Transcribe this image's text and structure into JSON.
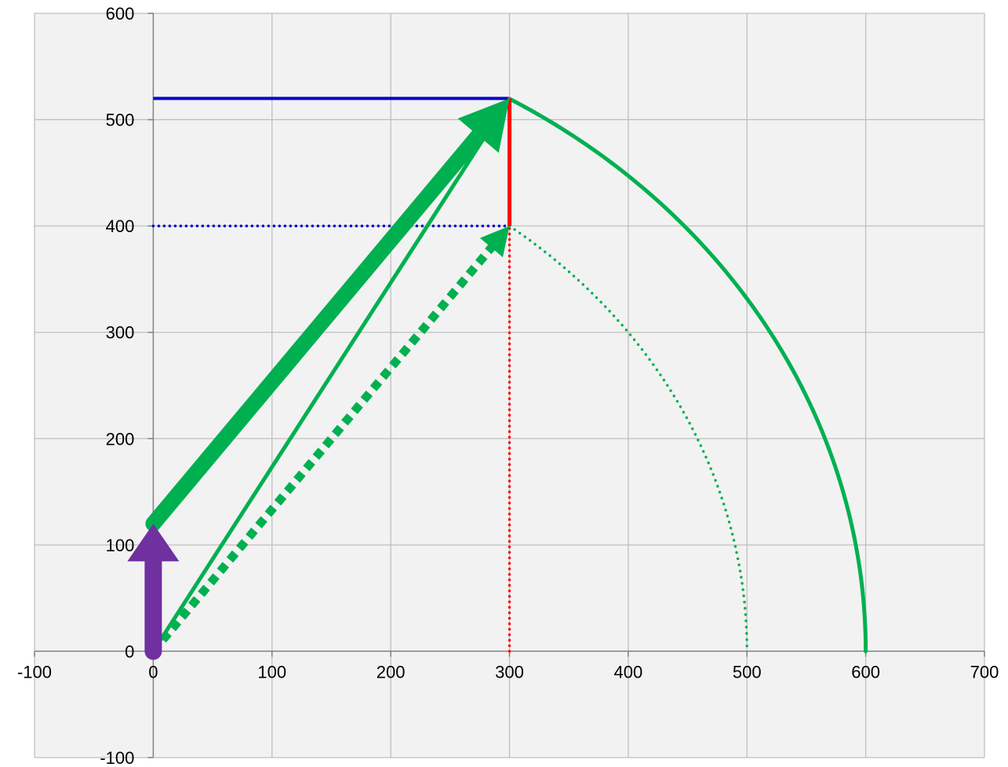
{
  "chart_data": {
    "type": "scatter",
    "title": "",
    "xlabel": "",
    "ylabel": "",
    "xlim": [
      -100,
      700
    ],
    "ylim": [
      -100,
      600
    ],
    "grid": true,
    "legend": "none",
    "x_ticks": [
      -100,
      0,
      100,
      200,
      300,
      400,
      500,
      600,
      700
    ],
    "y_ticks": [
      -100,
      0,
      100,
      200,
      300,
      400,
      500,
      600
    ],
    "x_tick_labels": [
      "-100",
      "0",
      "100",
      "200",
      "300",
      "400",
      "500",
      "600",
      "700"
    ],
    "y_tick_labels": [
      "-100",
      "0",
      "100",
      "200",
      "300",
      "400",
      "500",
      "600"
    ],
    "colors": {
      "plot_background": "#f2f2f2",
      "grid": "#bfbfbf",
      "axis": "#808080",
      "blue": "#0000cc",
      "red": "#ff0000",
      "green": "#00b050",
      "purple": "#7030a0"
    },
    "series": [
      {
        "style": "blue-solid",
        "x": [
          0,
          300
        ],
        "y": [
          520,
          520
        ]
      },
      {
        "style": "blue-dotted",
        "x": [
          0,
          300
        ],
        "y": [
          400,
          400
        ]
      },
      {
        "style": "red-solid",
        "x": [
          300,
          300
        ],
        "y": [
          400,
          520
        ]
      },
      {
        "style": "red-dotted",
        "x": [
          300,
          300
        ],
        "y": [
          0,
          400
        ]
      },
      {
        "style": "green-thin-arrow",
        "x": [
          0,
          300
        ],
        "y": [
          0,
          520
        ]
      },
      {
        "style": "green-dashed-arrow",
        "x": [
          0,
          300
        ],
        "y": [
          0,
          400
        ]
      },
      {
        "style": "green-thick-arrow",
        "x": [
          0,
          300
        ],
        "y": [
          120,
          520
        ]
      },
      {
        "style": "purple-thick-arrow",
        "x": [
          0,
          0
        ],
        "y": [
          0,
          120
        ]
      },
      {
        "style": "green-solid-arc",
        "center": [
          0,
          0
        ],
        "radius": 600,
        "x_range": [
          300,
          600
        ]
      },
      {
        "style": "green-dotted-arc",
        "center": [
          0,
          0
        ],
        "radius": 500,
        "x_range": [
          300,
          500
        ]
      }
    ]
  }
}
